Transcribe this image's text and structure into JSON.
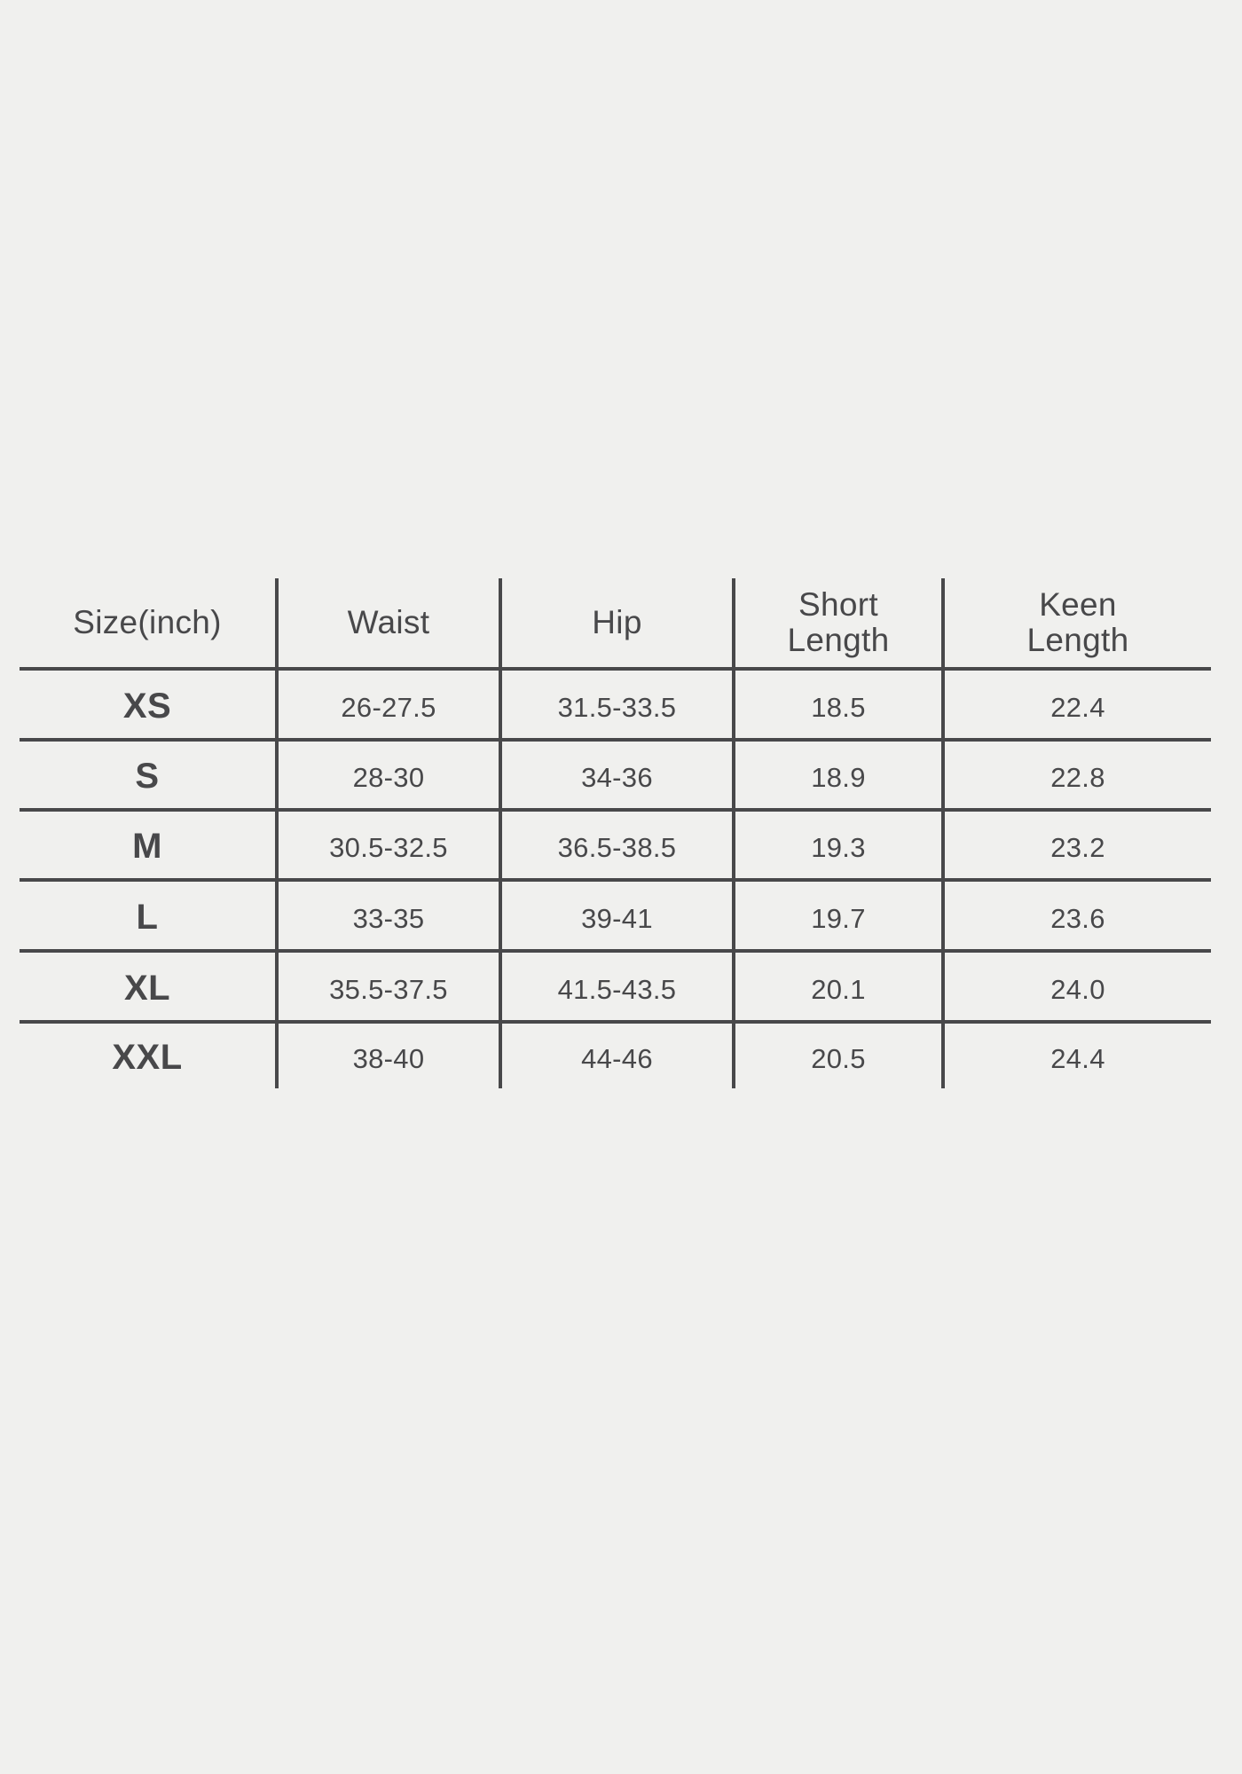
{
  "page": {
    "background_color": "#f0f0ee",
    "grid_line_color": "#48484a",
    "text_color": "#48484a"
  },
  "chart_data": {
    "type": "table",
    "columns": [
      "Size(inch)",
      "Waist",
      "Hip",
      "Short Length",
      "Keen Length"
    ],
    "column_lines": [
      [
        "Size(inch)"
      ],
      [
        "Waist"
      ],
      [
        "Hip"
      ],
      [
        "Short",
        "Length"
      ],
      [
        "Keen",
        "Length"
      ]
    ],
    "rows": [
      [
        "XS",
        "26-27.5",
        "31.5-33.5",
        "18.5",
        "22.4"
      ],
      [
        "S",
        "28-30",
        "34-36",
        "18.9",
        "22.8"
      ],
      [
        "M",
        "30.5-32.5",
        "36.5-38.5",
        "19.3",
        "23.2"
      ],
      [
        "L",
        "33-35",
        "39-41",
        "19.7",
        "23.6"
      ],
      [
        "XL",
        "35.5-37.5",
        "41.5-43.5",
        "20.1",
        "24.0"
      ],
      [
        "XXL",
        "38-40",
        "44-46",
        "20.5",
        "24.4"
      ]
    ]
  }
}
